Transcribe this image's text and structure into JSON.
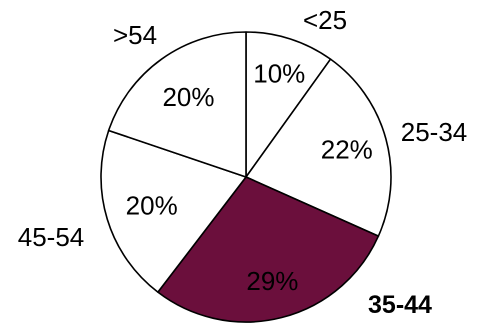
{
  "chart_data": {
    "type": "pie",
    "title": "",
    "start_angle_deg": 0,
    "direction": "clockwise",
    "slices": [
      {
        "label": "<25",
        "value": 10,
        "value_label": "10%",
        "color": "#ffffff",
        "label_bold": false
      },
      {
        "label": "25-34",
        "value": 22,
        "value_label": "22%",
        "color": "#ffffff",
        "label_bold": false
      },
      {
        "label": "35-44",
        "value": 29,
        "value_label": "29%",
        "color": "#6b0f3c",
        "label_bold": true
      },
      {
        "label": "45-54",
        "value": 20,
        "value_label": "20%",
        "color": "#ffffff",
        "label_bold": false
      },
      {
        "label": ">54",
        "value": 20,
        "value_label": "20%",
        "color": "#ffffff",
        "label_bold": false
      }
    ],
    "stroke_color": "#000000",
    "highlight_text_color": "#ffffff"
  }
}
